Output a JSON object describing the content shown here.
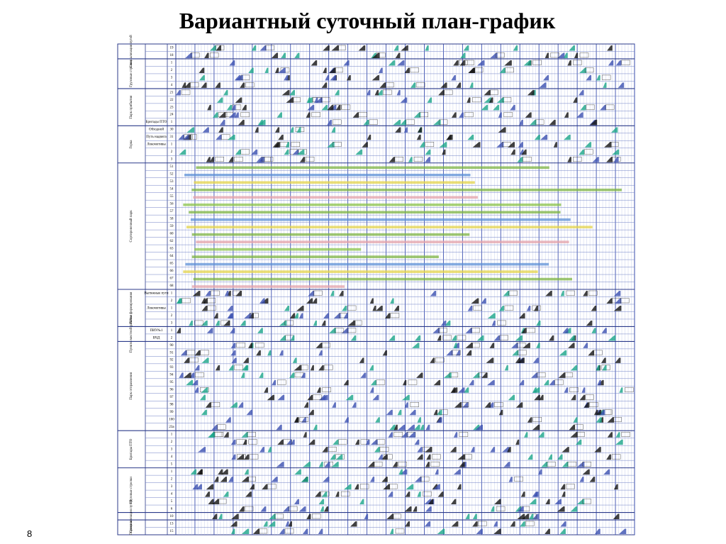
{
  "title": "Вариантный суточный план-график",
  "page_number": "8",
  "sections": [
    {
      "label": "Специализация путей",
      "rows": [
        {
          "num": "19"
        },
        {
          "num": "18"
        }
      ]
    },
    {
      "label": "Грузовые стрелки",
      "rows": [
        {
          "num": "1"
        },
        {
          "num": "2"
        },
        {
          "num": "3"
        },
        {
          "num": "4"
        }
      ]
    },
    {
      "label": "Парк прибытия",
      "rows": [
        {
          "num": "21"
        },
        {
          "num": "22"
        },
        {
          "num": "23"
        },
        {
          "num": "24"
        },
        {
          "label": "Бригады ПТО",
          "num": "1"
        }
      ]
    },
    {
      "label": "Горка",
      "rows": [
        {
          "label": "Обходной",
          "num": "30"
        },
        {
          "label": "Путь надвига",
          "num": "31"
        },
        {
          "label": "Локомотивы",
          "num": "1"
        },
        {
          "num": "2"
        },
        {
          "num": "3"
        }
      ]
    },
    {
      "label": "Сортировочный парк",
      "rows": [
        {
          "num": "51"
        },
        {
          "num": "52"
        },
        {
          "num": "53"
        },
        {
          "num": "54"
        },
        {
          "num": "55"
        },
        {
          "num": "56"
        },
        {
          "num": "57"
        },
        {
          "num": "58"
        },
        {
          "num": "59"
        },
        {
          "num": "60"
        },
        {
          "num": "62"
        },
        {
          "num": "63"
        },
        {
          "num": "64"
        },
        {
          "num": "65"
        },
        {
          "num": "66"
        },
        {
          "num": "67"
        },
        {
          "num": "68"
        }
      ]
    },
    {
      "label": "Район формирования",
      "rows": [
        {
          "label": "Вытяжные пути",
          "num": "1"
        },
        {
          "num": "2"
        },
        {
          "label": "Локомотивы",
          "num": "1"
        },
        {
          "num": "2"
        },
        {
          "num": "3"
        }
      ]
    },
    {
      "label": "Пункты местной работы",
      "rows": [
        {
          "label": "ПИУ№1",
          "num": "1"
        },
        {
          "label": "ВЧД",
          "num": "2"
        }
      ]
    },
    {
      "label": "Парк отправления",
      "rows": [
        {
          "num": "90"
        },
        {
          "num": "91"
        },
        {
          "num": "92"
        },
        {
          "num": "93"
        },
        {
          "num": "94"
        },
        {
          "num": "95"
        },
        {
          "num": "96"
        },
        {
          "num": "97"
        },
        {
          "num": "98"
        },
        {
          "num": "99"
        },
        {
          "num": "100"
        },
        {
          "num": "23а"
        }
      ]
    },
    {
      "label": "Бригады ПТО",
      "rows": [
        {
          "num": "1"
        },
        {
          "num": "2"
        },
        {
          "num": "3"
        },
        {
          "num": "4"
        },
        {
          "num": "5"
        }
      ]
    },
    {
      "label": "Грузовые стрелки",
      "rows": [
        {
          "num": "1"
        },
        {
          "num": "2"
        },
        {
          "num": "3"
        },
        {
          "num": "4"
        },
        {
          "num": "5"
        },
        {
          "num": "6"
        }
      ]
    },
    {
      "label": "Специализация путей",
      "rows": [
        {
          "num": "10"
        }
      ]
    },
    {
      "label": "Порожние",
      "rows": [
        {
          "num": "13"
        },
        {
          "num": "15"
        }
      ]
    }
  ]
}
